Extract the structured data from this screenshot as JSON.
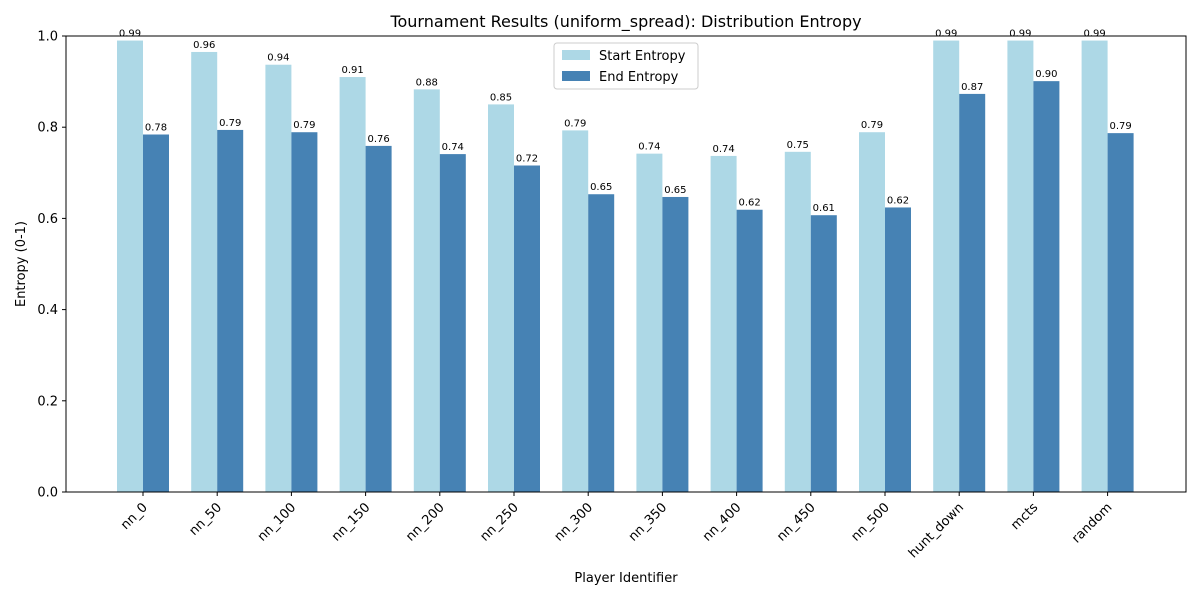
{
  "chart_data": {
    "type": "bar",
    "title": "Tournament Results (uniform_spread): Distribution Entropy",
    "xlabel": "Player Identifier",
    "ylabel": "Entropy (0-1)",
    "ylim": [
      0,
      1.0
    ],
    "yticks": [
      "0.0",
      "0.2",
      "0.4",
      "0.6",
      "0.8",
      "1.0"
    ],
    "ytick_values": [
      0,
      0.2,
      0.4,
      0.6,
      0.8,
      1.0
    ],
    "grid": false,
    "legend_position": "top-center",
    "categories": [
      "nn_0",
      "nn_50",
      "nn_100",
      "nn_150",
      "nn_200",
      "nn_250",
      "nn_300",
      "nn_350",
      "nn_400",
      "nn_450",
      "nn_500",
      "hunt_down",
      "mcts",
      "random"
    ],
    "series": [
      {
        "name": "Start Entropy",
        "color": "#add8e6",
        "values": [
          0.99,
          0.965,
          0.937,
          0.91,
          0.883,
          0.85,
          0.793,
          0.742,
          0.737,
          0.746,
          0.789,
          0.99,
          0.99,
          0.99
        ],
        "labels": [
          "0.99",
          "0.96",
          "0.94",
          "0.91",
          "0.88",
          "0.85",
          "0.79",
          "0.74",
          "0.74",
          "0.75",
          "0.79",
          "0.99",
          "0.99",
          "0.99"
        ]
      },
      {
        "name": "End Entropy",
        "color": "#4682b4",
        "values": [
          0.784,
          0.794,
          0.789,
          0.759,
          0.741,
          0.716,
          0.653,
          0.647,
          0.619,
          0.607,
          0.624,
          0.873,
          0.901,
          0.787
        ],
        "labels": [
          "0.78",
          "0.79",
          "0.79",
          "0.76",
          "0.74",
          "0.72",
          "0.65",
          "0.65",
          "0.62",
          "0.61",
          "0.62",
          "0.87",
          "0.90",
          "0.79"
        ]
      }
    ]
  }
}
